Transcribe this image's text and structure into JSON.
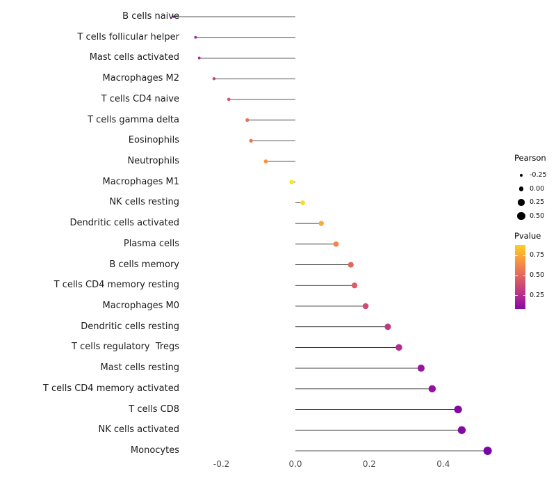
{
  "chart_data": {
    "type": "scatter",
    "subtype": "lollipop",
    "title": "",
    "xlabel": "",
    "ylabel": "",
    "x_ticks": [
      -0.2,
      0.0,
      0.2,
      0.4
    ],
    "x_tick_labels": [
      "-0.2",
      "0.0",
      "0.2",
      "0.4"
    ],
    "xlim": [
      -0.38,
      0.56
    ],
    "grid": "off",
    "background": "#ffffff",
    "stem_color": "#1a1a1a",
    "points": [
      {
        "label": "B cells naive",
        "pearson": -0.33,
        "pvalue": 0.08
      },
      {
        "label": "T cells follicular helper",
        "pearson": -0.27,
        "pvalue": 0.18
      },
      {
        "label": "Mast cells activated",
        "pearson": -0.26,
        "pvalue": 0.22
      },
      {
        "label": "Macrophages M2",
        "pearson": -0.22,
        "pvalue": 0.32
      },
      {
        "label": "T cells CD4 naive",
        "pearson": -0.18,
        "pvalue": 0.42
      },
      {
        "label": "T cells gamma delta",
        "pearson": -0.13,
        "pvalue": 0.55
      },
      {
        "label": "Eosinophils",
        "pearson": -0.12,
        "pvalue": 0.58
      },
      {
        "label": "Neutrophils",
        "pearson": -0.08,
        "pvalue": 0.68
      },
      {
        "label": "Macrophages M1",
        "pearson": -0.01,
        "pvalue": 0.95
      },
      {
        "label": "NK cells resting",
        "pearson": 0.02,
        "pvalue": 0.92
      },
      {
        "label": "Dendritic cells activated",
        "pearson": 0.07,
        "pvalue": 0.75
      },
      {
        "label": "Plasma cells",
        "pearson": 0.11,
        "pvalue": 0.62
      },
      {
        "label": "B cells memory",
        "pearson": 0.15,
        "pvalue": 0.5
      },
      {
        "label": "T cells CD4 memory resting",
        "pearson": 0.16,
        "pvalue": 0.46
      },
      {
        "label": "Macrophages M0",
        "pearson": 0.19,
        "pvalue": 0.38
      },
      {
        "label": "Dendritic cells resting",
        "pearson": 0.25,
        "pvalue": 0.3
      },
      {
        "label": "T cells regulatory  Tregs",
        "pearson": 0.28,
        "pvalue": 0.24
      },
      {
        "label": "Mast cells resting",
        "pearson": 0.34,
        "pvalue": 0.14
      },
      {
        "label": "T cells CD4 memory activated",
        "pearson": 0.37,
        "pvalue": 0.12
      },
      {
        "label": "T cells CD8",
        "pearson": 0.44,
        "pvalue": 0.06
      },
      {
        "label": "NK cells activated",
        "pearson": 0.45,
        "pvalue": 0.06
      },
      {
        "label": "Monocytes",
        "pearson": 0.52,
        "pvalue": 0.03
      }
    ],
    "colormap": [
      "#0d0887",
      "#41049d",
      "#6a00a8",
      "#8f0da4",
      "#b12a90",
      "#cc4778",
      "#e16462",
      "#f2844b",
      "#fca636",
      "#fcce25",
      "#f0f921"
    ],
    "legend": {
      "size": {
        "title": "Pearson",
        "entries": [
          "-0.25",
          "0.00",
          "0.25",
          "0.50"
        ],
        "values": [
          -0.25,
          0.0,
          0.25,
          0.5
        ],
        "dot_color": "#000000"
      },
      "color": {
        "title": "Pvalue",
        "tick_labels": [
          "0.75",
          "0.50",
          "0.25"
        ],
        "tick_values": [
          0.75,
          0.5,
          0.25
        ],
        "orientation": "vertical",
        "top_is_high": true
      }
    }
  }
}
